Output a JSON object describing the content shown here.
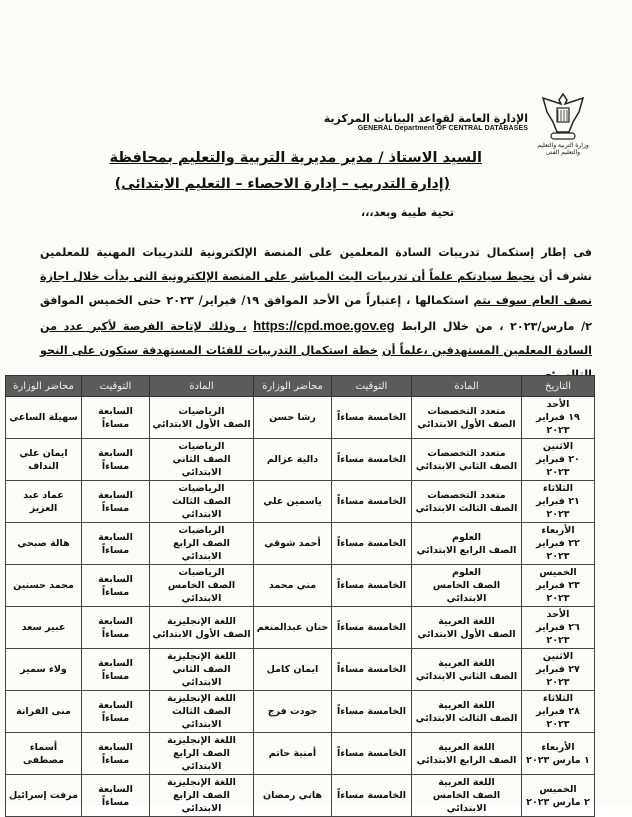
{
  "letterhead": {
    "org_ar": "الإدارة العامة لقواعد البيانات المركزية",
    "org_en": "GENERAL Department OF CENTRAL DATABASES",
    "emblem_caption": "وزارة التربية والتعليم والتعليم الفنى"
  },
  "addressee": {
    "line1": "السيد الاستاذ / مدير مديرية التربية والتعليم بمحافظة",
    "line2": "(إدارة التدريب – إدارة الاحصاء – التعليم الابتدائى)"
  },
  "greeting": "تحية طيبة وبعد،،،",
  "body": {
    "p1": "فى إطار إستكمال تدريبات السادة المعلمين على المنصة الإلكترونية للتدريبات المهنية للمعلمين نشرف أن",
    "p2": "نحيط سيادتكم علماً أن تدريبات البث المباشر على المنصة الإلكترونية التى بدأت خلال اجازة نصف العام سوف يتم",
    "p3": "استكمالها ، إعتباراً من الأحد الموافق ١٩/ فبراير/ ٢٠٢٣ حتى الخميس الموافق ٢/ مارس/٢٠٢٣ ، من خلال الرابط",
    "url": "https://cpd.moe.gov.eg",
    "p4": "، وذلك لإتاحة الفرصة لأكبر عدد من السادة المعلمين المستهدفين ،علماً أن",
    "p5": "خطة استكمال التدريبات للفئات المستهدفة ستكون على النحو التالى :–"
  },
  "table": {
    "headers": [
      "التاريخ",
      "المادة",
      "التوقيت",
      "محاضر الوزارة",
      "المادة",
      "التوقيت",
      "محاضر الوزارة"
    ],
    "rows": [
      {
        "day": "الأحد",
        "date": "١٩ فبراير ٢٠٢٣",
        "subj1": "متعدد التخصصات",
        "grade1": "الصف الأول الابتدائي",
        "time1": "الخامسة مساءاً",
        "lect1": "رشا حسن",
        "subj2": "الرياضيات",
        "grade2": "الصف الأول الابتدائي",
        "time2": "السابعة مساءاً",
        "lect2": "سهيلة الساعي"
      },
      {
        "day": "الاثنين",
        "date": "٢٠ فبراير ٢٠٢٣",
        "subj1": "متعدد التخصصات",
        "grade1": "الصف الثاني الابتدائي",
        "time1": "الخامسة مساءاً",
        "lect1": "دالية عزالم",
        "subj2": "الرياضيات",
        "grade2": "الصف الثاني الابتدائي",
        "time2": "السابعة مساءاً",
        "lect2": "ايمان علي النداف"
      },
      {
        "day": "الثلاثاء",
        "date": "٢١ فبراير ٢٠٢٣",
        "subj1": "متعدد التخصصات",
        "grade1": "الصف الثالث الابتدائي",
        "time1": "الخامسة مساءاً",
        "lect1": "ياسمين علي",
        "subj2": "الرياضيات",
        "grade2": "الصف الثالث الابتدائي",
        "time2": "السابعة مساءاً",
        "lect2": "عماد عبد العزيز"
      },
      {
        "day": "الأربعاء",
        "date": "٢٢ فبراير ٢٠٢٣",
        "subj1": "العلوم",
        "grade1": "الصف الرابع الابتدائي",
        "time1": "الخامسة مساءاً",
        "lect1": "أحمد شوقي",
        "subj2": "الرياضيات",
        "grade2": "الصف الرابع الابتدائي",
        "time2": "السابعة مساءاً",
        "lect2": "هالة صبحي"
      },
      {
        "day": "الخميس",
        "date": "٢٣ فبراير ٢٠٢٣",
        "subj1": "العلوم",
        "grade1": "الصف الخامس الابتدائي",
        "time1": "الخامسة مساءاً",
        "lect1": "مني محمد",
        "subj2": "الرياضيات",
        "grade2": "الصف الخامس الابتدائي",
        "time2": "السابعة مساءاً",
        "lect2": "محمد حسنين"
      },
      {
        "day": "الأحد",
        "date": "٢٦ فبراير ٢٠٢٣",
        "subj1": "اللغة العربية",
        "grade1": "الصف الأول الابتدائي",
        "time1": "الخامسة مساءاً",
        "lect1": "حنان عبدالمنعم",
        "subj2": "اللغة الإنجليزية",
        "grade2": "الصف الأول الابتدائي",
        "time2": "السابعة مساءاً",
        "lect2": "عبير سعد"
      },
      {
        "day": "الاثنين",
        "date": "٢٧ فبراير ٢٠٢٣",
        "subj1": "اللغة العربية",
        "grade1": "الصف الثاني الابتدائي",
        "time1": "الخامسة مساءاً",
        "lect1": "ايمان كامل",
        "subj2": "اللغة الإنجليزية",
        "grade2": "الصف الثاني الابتدائي",
        "time2": "السابعة مساءاً",
        "lect2": "ولاء سمير"
      },
      {
        "day": "الثلاثاء",
        "date": "٢٨ فبراير ٢٠٢٣",
        "subj1": "اللغة العربية",
        "grade1": "الصف الثالث الابتدائي",
        "time1": "الخامسة مساءاً",
        "lect1": "جودت فرج",
        "subj2": "اللغة الإنجليزية",
        "grade2": "الصف الثالث الابتدائي",
        "time2": "السابعة مساءاً",
        "lect2": "منى الفرانة"
      },
      {
        "day": "الأربعاء",
        "date": "١ مارس ٢٠٢٣",
        "subj1": "اللغة العربية",
        "grade1": "الصف الرابع الابتدائي",
        "time1": "الخامسة مساءاً",
        "lect1": "أمنية حاتم",
        "subj2": "اللغة الإنجليزية",
        "grade2": "الصف الرابع الابتدائي",
        "time2": "السابعة مساءاً",
        "lect2": "أسماء مصطفى"
      },
      {
        "day": "الخميس",
        "date": "٢ مارس ٢٠٢٣",
        "subj1": "اللغة العربية",
        "grade1": "الصف الخامس الابتدائي",
        "time1": "الخامسة مساءاً",
        "lect1": "هاني رمضان",
        "subj2": "اللغة الإنجليزية",
        "grade2": "الصف الرابع الابتدائي",
        "time2": "السابعة مساءاً",
        "lect2": "مرفت إسرائيل"
      }
    ]
  }
}
